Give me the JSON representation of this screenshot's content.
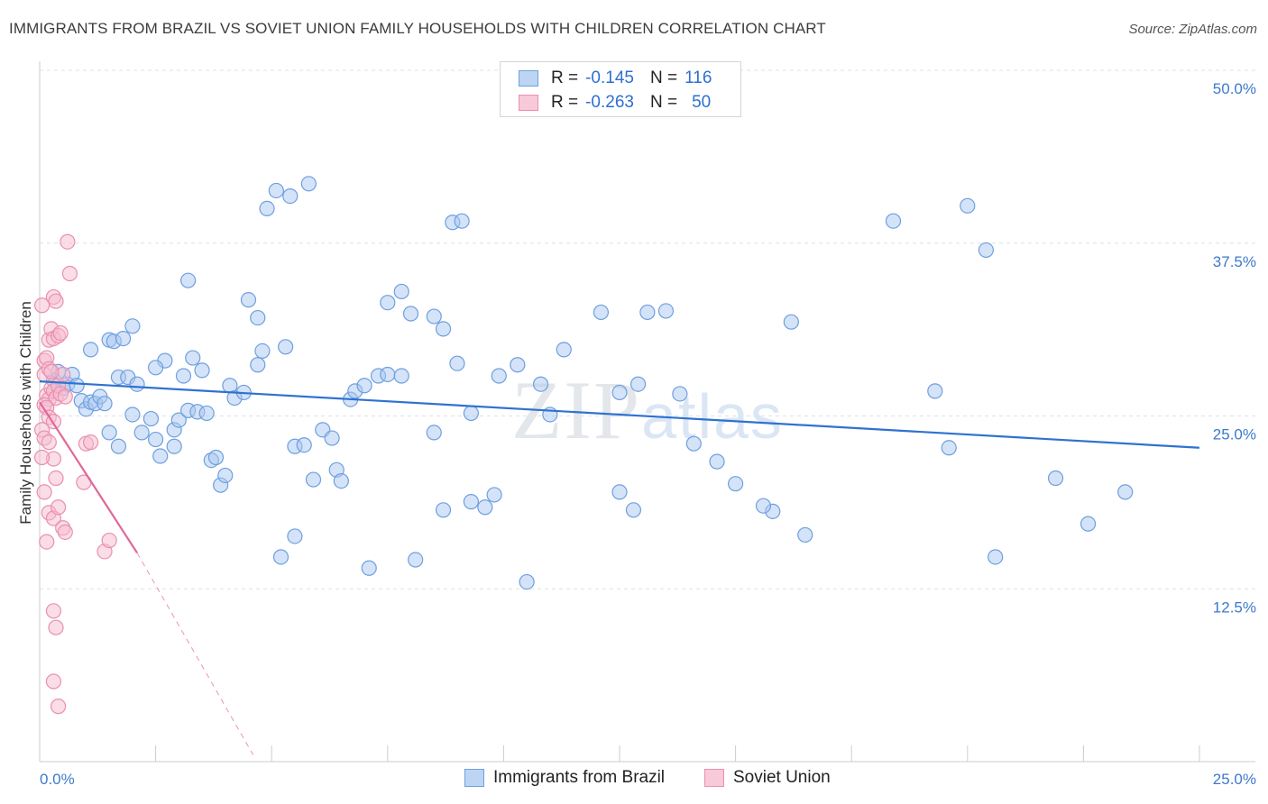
{
  "title": "IMMIGRANTS FROM BRAZIL VS SOVIET UNION FAMILY HOUSEHOLDS WITH CHILDREN CORRELATION CHART",
  "source": "Source: ZipAtlas.com",
  "watermark": "ZIPatlas",
  "colors": {
    "brazil_fill": "#a9c8f0",
    "brazil_stroke": "#6e9fe0",
    "brazil_line": "#2f72d1",
    "soviet_fill": "#f6bcd0",
    "soviet_stroke": "#ea8fae",
    "soviet_line": "#e0679a",
    "tick_text": "#3d7acb",
    "grid": "#dde1e6"
  },
  "legend": {
    "rows": [
      {
        "r_label": "R =",
        "r_value": "-0.145",
        "n_label": "N =",
        "n_value": "116"
      },
      {
        "r_label": "R =",
        "r_value": "-0.263",
        "n_label": "N =",
        "n_value": "50"
      }
    ]
  },
  "bottom_legend": {
    "brazil": "Immigrants from Brazil",
    "soviet": "Soviet Union"
  },
  "chart_data": {
    "type": "scatter",
    "title": "IMMIGRANTS FROM BRAZIL VS SOVIET UNION FAMILY HOUSEHOLDS WITH CHILDREN CORRELATION CHART",
    "xlabel": "",
    "ylabel": "Family Households with Children",
    "xlim": [
      0,
      25
    ],
    "ylim": [
      0,
      50
    ],
    "x_tick_labels": [
      "0.0%",
      "25.0%"
    ],
    "y_ticks": [
      12.5,
      25.0,
      37.5,
      50.0
    ],
    "y_tick_labels": [
      "12.5%",
      "25.0%",
      "37.5%",
      "50.0%"
    ],
    "grid": true,
    "legend_position": "top-center",
    "series": [
      {
        "name": "Immigrants from Brazil",
        "trend": {
          "x": [
            0.0,
            25.0
          ],
          "y": [
            27.5,
            22.7
          ]
        },
        "points": [
          [
            0.3,
            27.6
          ],
          [
            0.4,
            28.2
          ],
          [
            0.5,
            27.0
          ],
          [
            0.6,
            27.3
          ],
          [
            0.7,
            28.0
          ],
          [
            0.8,
            27.2
          ],
          [
            0.9,
            26.1
          ],
          [
            1.0,
            25.5
          ],
          [
            1.1,
            26.0
          ],
          [
            1.2,
            25.9
          ],
          [
            1.3,
            26.4
          ],
          [
            1.4,
            25.9
          ],
          [
            1.1,
            29.8
          ],
          [
            1.5,
            30.5
          ],
          [
            1.6,
            30.4
          ],
          [
            1.8,
            30.6
          ],
          [
            2.0,
            31.5
          ],
          [
            1.7,
            27.8
          ],
          [
            1.9,
            27.8
          ],
          [
            2.1,
            27.3
          ],
          [
            1.5,
            23.8
          ],
          [
            1.7,
            22.8
          ],
          [
            2.0,
            25.1
          ],
          [
            2.2,
            23.8
          ],
          [
            2.4,
            24.8
          ],
          [
            2.5,
            23.3
          ],
          [
            2.6,
            22.1
          ],
          [
            2.7,
            29.0
          ],
          [
            2.5,
            28.5
          ],
          [
            2.9,
            22.8
          ],
          [
            2.9,
            24.0
          ],
          [
            3.0,
            24.7
          ],
          [
            3.1,
            27.9
          ],
          [
            3.2,
            25.4
          ],
          [
            3.4,
            25.3
          ],
          [
            3.6,
            25.2
          ],
          [
            3.2,
            34.8
          ],
          [
            3.3,
            29.2
          ],
          [
            3.5,
            28.3
          ],
          [
            3.7,
            21.8
          ],
          [
            3.8,
            22.0
          ],
          [
            3.9,
            20.0
          ],
          [
            4.0,
            20.7
          ],
          [
            4.1,
            27.2
          ],
          [
            4.2,
            26.3
          ],
          [
            4.4,
            26.7
          ],
          [
            4.7,
            28.7
          ],
          [
            4.8,
            29.7
          ],
          [
            4.5,
            33.4
          ],
          [
            4.7,
            32.1
          ],
          [
            4.9,
            40.0
          ],
          [
            5.1,
            41.3
          ],
          [
            5.4,
            40.9
          ],
          [
            5.8,
            41.8
          ],
          [
            5.3,
            30.0
          ],
          [
            5.5,
            22.8
          ],
          [
            5.7,
            22.9
          ],
          [
            5.9,
            20.4
          ],
          [
            6.1,
            24.0
          ],
          [
            6.3,
            23.4
          ],
          [
            6.4,
            21.1
          ],
          [
            6.5,
            20.3
          ],
          [
            6.7,
            26.2
          ],
          [
            6.8,
            26.8
          ],
          [
            7.0,
            27.2
          ],
          [
            7.3,
            27.9
          ],
          [
            7.5,
            28.0
          ],
          [
            7.8,
            27.9
          ],
          [
            7.5,
            33.2
          ],
          [
            7.8,
            34.0
          ],
          [
            8.0,
            32.4
          ],
          [
            8.5,
            32.2
          ],
          [
            8.9,
            39.0
          ],
          [
            9.1,
            39.1
          ],
          [
            8.5,
            23.8
          ],
          [
            8.7,
            31.3
          ],
          [
            9.0,
            28.8
          ],
          [
            9.3,
            25.2
          ],
          [
            9.9,
            27.9
          ],
          [
            10.3,
            28.7
          ],
          [
            10.8,
            27.3
          ],
          [
            11.0,
            25.1
          ],
          [
            11.3,
            29.8
          ],
          [
            12.1,
            32.5
          ],
          [
            12.5,
            26.7
          ],
          [
            12.9,
            27.3
          ],
          [
            13.1,
            32.5
          ],
          [
            13.5,
            32.6
          ],
          [
            13.8,
            26.6
          ],
          [
            14.1,
            23.0
          ],
          [
            14.6,
            21.7
          ],
          [
            15.0,
            20.1
          ],
          [
            16.2,
            31.8
          ],
          [
            15.8,
            18.1
          ],
          [
            5.2,
            14.8
          ],
          [
            5.5,
            16.3
          ],
          [
            7.1,
            14.0
          ],
          [
            8.1,
            14.6
          ],
          [
            8.7,
            18.2
          ],
          [
            9.3,
            18.8
          ],
          [
            9.6,
            18.4
          ],
          [
            9.8,
            19.3
          ],
          [
            10.5,
            13.0
          ],
          [
            12.5,
            19.5
          ],
          [
            12.8,
            18.2
          ],
          [
            15.6,
            18.5
          ],
          [
            16.5,
            16.4
          ],
          [
            18.4,
            39.1
          ],
          [
            19.3,
            26.8
          ],
          [
            19.6,
            22.7
          ],
          [
            20.6,
            14.8
          ],
          [
            21.9,
            20.5
          ],
          [
            22.6,
            17.2
          ],
          [
            23.4,
            19.5
          ],
          [
            20.0,
            40.2
          ],
          [
            20.4,
            37.0
          ]
        ]
      },
      {
        "name": "Soviet Union",
        "trend": {
          "x": [
            0.0,
            2.1
          ],
          "y": [
            26.0,
            15.1
          ]
        },
        "trend_extension": {
          "x": [
            2.1,
            4.6
          ],
          "y": [
            15.1,
            0.5
          ]
        },
        "points": [
          [
            0.1,
            28.0
          ],
          [
            0.15,
            26.5
          ],
          [
            0.2,
            26.2
          ],
          [
            0.25,
            27.0
          ],
          [
            0.3,
            26.8
          ],
          [
            0.35,
            26.3
          ],
          [
            0.4,
            27.2
          ],
          [
            0.45,
            26.6
          ],
          [
            0.5,
            28.0
          ],
          [
            0.55,
            26.4
          ],
          [
            0.1,
            25.8
          ],
          [
            0.15,
            25.6
          ],
          [
            0.2,
            24.9
          ],
          [
            0.05,
            24.0
          ],
          [
            0.1,
            23.4
          ],
          [
            0.3,
            24.6
          ],
          [
            0.05,
            33.0
          ],
          [
            0.2,
            30.5
          ],
          [
            0.25,
            31.3
          ],
          [
            0.3,
            30.6
          ],
          [
            0.4,
            30.8
          ],
          [
            0.45,
            31.0
          ],
          [
            0.3,
            33.6
          ],
          [
            0.35,
            33.3
          ],
          [
            0.6,
            37.6
          ],
          [
            0.65,
            35.3
          ],
          [
            0.1,
            29.0
          ],
          [
            0.15,
            29.2
          ],
          [
            0.2,
            28.4
          ],
          [
            0.25,
            28.2
          ],
          [
            0.3,
            21.9
          ],
          [
            0.35,
            20.5
          ],
          [
            0.2,
            18.0
          ],
          [
            0.3,
            17.6
          ],
          [
            0.4,
            18.4
          ],
          [
            0.5,
            16.9
          ],
          [
            0.55,
            16.6
          ],
          [
            0.15,
            15.9
          ],
          [
            0.3,
            10.9
          ],
          [
            0.35,
            9.7
          ],
          [
            0.3,
            5.8
          ],
          [
            0.4,
            4.0
          ],
          [
            1.0,
            23.0
          ],
          [
            1.1,
            23.1
          ],
          [
            0.95,
            20.2
          ],
          [
            1.4,
            15.2
          ],
          [
            1.5,
            16.0
          ],
          [
            0.05,
            22.0
          ],
          [
            0.1,
            19.5
          ],
          [
            0.2,
            23.1
          ]
        ]
      }
    ]
  }
}
